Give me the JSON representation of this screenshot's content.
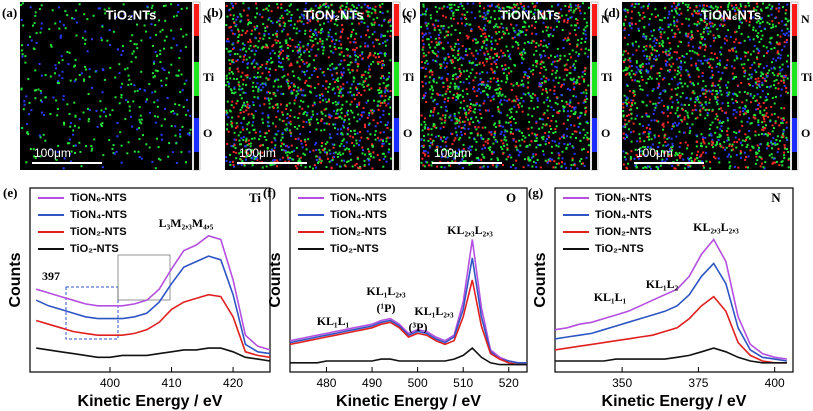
{
  "maps": [
    {
      "label": "(a)",
      "title": "TiO₂NTs",
      "scale": "100μm",
      "colorbar": [
        "N",
        "Ti",
        "O"
      ]
    },
    {
      "label": "(b)",
      "title": "TiON₂NTs",
      "scale": "100μm",
      "colorbar": [
        "N",
        "Ti",
        "O"
      ]
    },
    {
      "label": "(c)",
      "title": "TiON₄NTs",
      "scale": "100μm",
      "colorbar": [
        "N",
        "Ti",
        "O"
      ]
    },
    {
      "label": "(d)",
      "title": "TiON₆NTs",
      "scale": "100μm",
      "colorbar": [
        "N",
        "Ti",
        "O"
      ]
    }
  ],
  "chart_data": [
    {
      "type": "line",
      "panel_label": "(e)",
      "element": "Ti",
      "xlabel": "Kinetic Energy / eV",
      "ylabel": "Counts",
      "annotations": [
        "L₃M₂,₃M₄,₅",
        "397"
      ],
      "xlim": [
        387,
        426
      ],
      "xticks": [
        400,
        410,
        420
      ],
      "ylim": [
        0,
        100
      ],
      "x": [
        388,
        390,
        392,
        394,
        396,
        398,
        400,
        402,
        404,
        406,
        408,
        410,
        412,
        414,
        416,
        418,
        420,
        422,
        424,
        426
      ],
      "series": [
        {
          "name": "TiON₆-NTS",
          "color": "#b44fe0",
          "values": [
            45,
            43,
            41,
            39,
            37,
            36,
            36,
            36,
            37,
            39,
            45,
            56,
            66,
            69,
            74,
            72,
            50,
            20,
            14,
            12
          ]
        },
        {
          "name": "TiON₄-NTS",
          "color": "#2f55c4",
          "values": [
            39,
            36,
            34,
            32,
            30,
            29,
            29,
            29,
            30,
            32,
            38,
            48,
            57,
            60,
            63,
            61,
            42,
            15,
            11,
            10
          ]
        },
        {
          "name": "TiON₂-NTS",
          "color": "#e02020",
          "values": [
            28,
            26,
            24,
            22,
            21,
            20,
            20,
            20,
            21,
            23,
            27,
            34,
            38,
            40,
            42,
            41,
            30,
            11,
            9,
            8
          ]
        },
        {
          "name": "TiO₂-NTS",
          "color": "#111111",
          "values": [
            13,
            12,
            11,
            10,
            9,
            8,
            8,
            9,
            9,
            9,
            10,
            11,
            12,
            12,
            13,
            13,
            11,
            8,
            7,
            6
          ]
        }
      ]
    },
    {
      "type": "line",
      "panel_label": "(f)",
      "element": "O",
      "xlabel": "Kinetic Energy / eV",
      "ylabel": "Counts",
      "annotations": [
        "KL₁L₁",
        "KL₁L₂,₃",
        "(¹P)",
        "KL₁L₂,₃",
        "(³P)",
        "KL₂,₃L₂,₃"
      ],
      "xlim": [
        472,
        524
      ],
      "xticks": [
        480,
        490,
        500,
        510,
        520
      ],
      "ylim": [
        0,
        100
      ],
      "x": [
        472,
        474,
        476,
        478,
        480,
        482,
        484,
        486,
        488,
        490,
        492,
        494,
        496,
        498,
        500,
        502,
        504,
        506,
        508,
        510,
        512,
        514,
        516,
        518,
        520,
        522,
        524
      ],
      "series": [
        {
          "name": "TiON₆-NTS",
          "color": "#b44fe0",
          "values": [
            17,
            18,
            19,
            20,
            21,
            22,
            23,
            24,
            25,
            26,
            28,
            29,
            26,
            21,
            23,
            22,
            19,
            17,
            20,
            38,
            72,
            35,
            12,
            8,
            6,
            5,
            5
          ]
        },
        {
          "name": "TiON₄-NTS",
          "color": "#2f55c4",
          "values": [
            16,
            17,
            18,
            19,
            20,
            21,
            22,
            23,
            24,
            25,
            27,
            28,
            25,
            20,
            22,
            21,
            18,
            16,
            19,
            34,
            62,
            30,
            11,
            7,
            6,
            5,
            5
          ]
        },
        {
          "name": "TiON₂-NTS",
          "color": "#e02020",
          "values": [
            15,
            16,
            17,
            18,
            19,
            20,
            21,
            22,
            23,
            24,
            26,
            27,
            24,
            19,
            21,
            20,
            17,
            15,
            17,
            30,
            50,
            25,
            10,
            7,
            5,
            4,
            4
          ]
        },
        {
          "name": "TiO₂-NTS",
          "color": "#111111",
          "values": [
            5,
            5,
            5,
            5,
            6,
            6,
            6,
            6,
            6,
            6,
            7,
            7,
            6,
            6,
            6,
            6,
            6,
            6,
            7,
            9,
            13,
            8,
            5,
            4,
            4,
            4,
            4
          ]
        }
      ]
    },
    {
      "type": "line",
      "panel_label": "(g)",
      "element": "N",
      "xlabel": "Kinetic Energy / eV",
      "ylabel": "Counts",
      "annotations": [
        "KL₁L₁",
        "KL₁L₂",
        "KL₂,₃L₂,₃"
      ],
      "xlim": [
        328,
        406
      ],
      "xticks": [
        350,
        375,
        400
      ],
      "ylim": [
        0,
        100
      ],
      "x": [
        328,
        332,
        336,
        340,
        344,
        348,
        352,
        356,
        360,
        364,
        368,
        372,
        376,
        380,
        384,
        388,
        392,
        396,
        400,
        404
      ],
      "series": [
        {
          "name": "TiON₆-NTS",
          "color": "#b44fe0",
          "values": [
            23,
            24,
            26,
            27,
            29,
            31,
            33,
            36,
            39,
            42,
            45,
            52,
            64,
            72,
            60,
            30,
            15,
            10,
            8,
            7
          ]
        },
        {
          "name": "TiON₄-NTS",
          "color": "#2f55c4",
          "values": [
            18,
            19,
            20,
            21,
            23,
            25,
            27,
            29,
            31,
            33,
            36,
            42,
            52,
            59,
            48,
            24,
            12,
            8,
            7,
            6
          ]
        },
        {
          "name": "TiON₂-NTS",
          "color": "#e02020",
          "values": [
            12,
            13,
            14,
            15,
            16,
            17,
            18,
            19,
            20,
            22,
            24,
            29,
            36,
            41,
            33,
            16,
            9,
            6,
            5,
            5
          ]
        },
        {
          "name": "TiO₂-NTS",
          "color": "#111111",
          "values": [
            6,
            6,
            6,
            6,
            6,
            7,
            7,
            7,
            7,
            7,
            8,
            9,
            11,
            13,
            11,
            8,
            6,
            5,
            5,
            5
          ]
        }
      ]
    }
  ]
}
